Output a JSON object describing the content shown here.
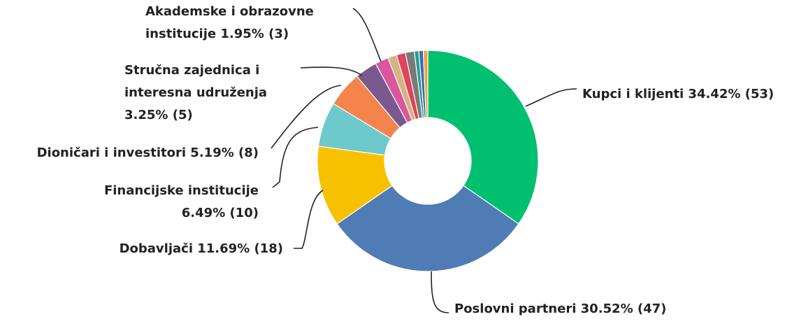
{
  "chart_data": {
    "type": "donut",
    "labels": [
      [
        "Kupci i klijenti 34.42% (53)"
      ],
      [
        "Poslovni partneri 30.52% (47)"
      ],
      [
        "Dobavljači 11.69% (18)"
      ],
      [
        "Financijske institucije",
        "6.49% (10)"
      ],
      [
        "Dioničari i investitori 5.19% (8)"
      ],
      [
        "Stručna zajednica i",
        "interesna udruženja",
        "3.25% (5)"
      ],
      [
        "Akademske i obrazovne",
        "institucije 1.95% (3)"
      ],
      null,
      null,
      null,
      null,
      null,
      null
    ],
    "values": [
      53,
      47,
      18,
      10,
      8,
      5,
      3,
      2,
      2,
      2,
      1,
      1,
      1
    ],
    "colors": [
      "#00c06f",
      "#507cb6",
      "#f7c100",
      "#6dc9cc",
      "#f5844c",
      "#7a5a8e",
      "#d9579c",
      "#d4b483",
      "#e0435a",
      "#7a7a7a",
      "#2a9d8f",
      "#3b6fb6",
      "#f2a33a"
    ]
  }
}
